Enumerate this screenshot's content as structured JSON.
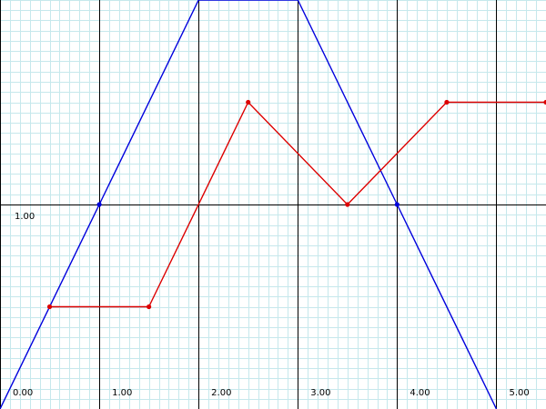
{
  "chart_data": {
    "type": "line",
    "title": "",
    "xlabel": "",
    "ylabel": "",
    "xlim": [
      0,
      5.5
    ],
    "ylim": [
      0,
      2.0
    ],
    "grid": true,
    "x_tick_labels": [
      "0.00",
      "1.00",
      "2.00",
      "3.00",
      "4.00",
      "5.00"
    ],
    "x_ticks": [
      0,
      1,
      2,
      3,
      4,
      5
    ],
    "y_tick_labels": [
      "1.00"
    ],
    "y_ticks": [
      1
    ],
    "series": [
      {
        "color": "#0000dd",
        "x": [
          0,
          1,
          2,
          3,
          4,
          5
        ],
        "y": [
          0,
          1,
          2,
          2,
          1,
          0
        ],
        "markers": [
          1,
          4
        ]
      },
      {
        "color": "#dd0000",
        "x": [
          0.5,
          1.5,
          2.5,
          3.5,
          4.5,
          5.5
        ],
        "y": [
          0.5,
          0.5,
          1.5,
          1,
          1.5,
          1.5
        ],
        "markers": [
          0,
          1,
          2,
          3,
          4,
          5
        ]
      }
    ]
  },
  "colors": {
    "minor_grid": "#c6e8ec",
    "major_grid": "#000000",
    "background": "#ffffff"
  }
}
